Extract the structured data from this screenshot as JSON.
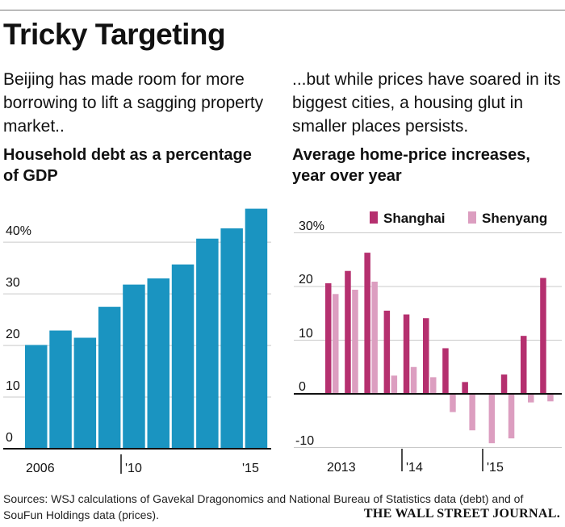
{
  "title": "Tricky Targeting",
  "intro_left": "Beijing has made room for more borrowing to lift a sagging property market..",
  "intro_right": "...but while prices have soared in its biggest cities, a housing glut in smaller places persists.",
  "source": "Sources: WSJ calculations of Gavekal Dragonomics and National Bureau of Statistics data (debt) and of SouFun Holdings data (prices).",
  "credit": "THE WALL STREET JOURNAL.",
  "chart_data": [
    {
      "type": "bar",
      "title": "Household debt as a percentage of GDP",
      "x_tick_labels": [
        "2006",
        "'10",
        "'15"
      ],
      "y_tick_labels": [
        "0",
        "10",
        "20",
        "30",
        "40%"
      ],
      "ylim": [
        0,
        48
      ],
      "categories": [
        "2006",
        "2007",
        "2008",
        "2009",
        "2010",
        "2011",
        "2012",
        "2013",
        "2014",
        "2015"
      ],
      "values": [
        20.1,
        22.9,
        21.5,
        27.5,
        31.8,
        33.0,
        35.7,
        40.7,
        42.7,
        46.5
      ],
      "color": "#1a94c1",
      "grid": true
    },
    {
      "type": "bar",
      "title": "Average home-price increases, year over year",
      "x_tick_labels": [
        "2013",
        "'14",
        "'15"
      ],
      "y_tick_labels": [
        "-10",
        "0",
        "10",
        "20",
        "30%"
      ],
      "ylim": [
        -12,
        34
      ],
      "categories": [
        "2013-1",
        "2013-2",
        "2013-3",
        "2013-4",
        "2014-1",
        "2014-2",
        "2014-3",
        "2014-4",
        "2015-1",
        "2015-2",
        "2015-3",
        "2015-4"
      ],
      "legend_position": "top-right",
      "grid": true,
      "series": [
        {
          "name": "Shanghai",
          "color": "#b5306f",
          "values": [
            20.6,
            22.9,
            26.3,
            15.5,
            14.8,
            14.1,
            8.5,
            2.2,
            0.1,
            3.6,
            10.8,
            21.6
          ]
        },
        {
          "name": "Shenyang",
          "color": "#dc9ec0",
          "values": [
            18.6,
            19.4,
            20.9,
            3.4,
            5.0,
            3.1,
            -3.4,
            -6.8,
            -9.2,
            -8.3,
            -1.6,
            -1.4
          ]
        }
      ]
    }
  ]
}
